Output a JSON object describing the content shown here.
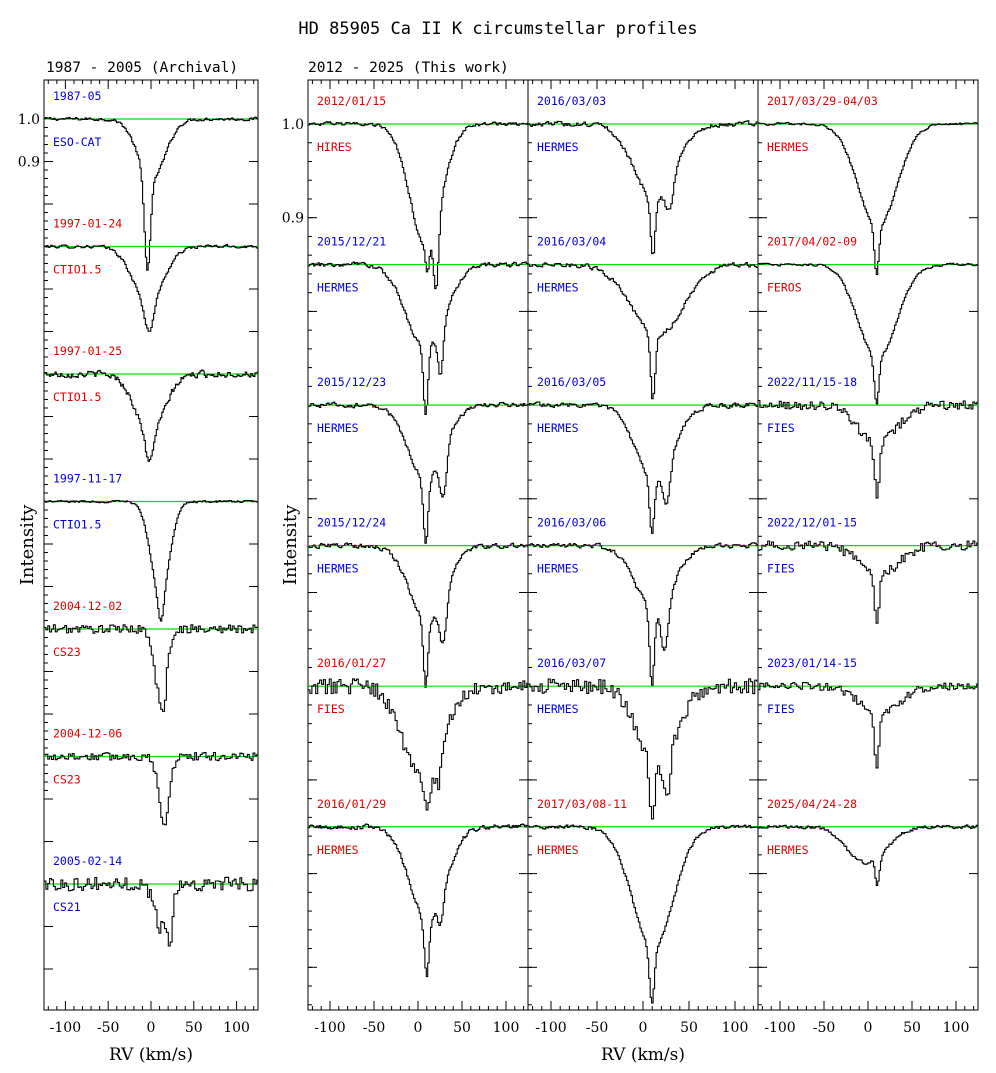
{
  "title": "HD 85905 Ca II K circumstellar profiles",
  "colors": {
    "continuum": "#00e000",
    "label_red": "#e00000",
    "label_blue": "#0000e0",
    "axis": "#000000",
    "spectrum": "#000000"
  },
  "chart_data": [
    {
      "type": "line",
      "panel": "archival",
      "header": "1987 - 2005 (Archival)",
      "xlabel": "RV (km/s)",
      "ylabel": "Intensity",
      "xlim": [
        -125,
        125
      ],
      "x_ticks": [
        -100,
        -50,
        0,
        50,
        100
      ],
      "y_tick_labels": [
        {
          "value": 1.0,
          "label": "1.0"
        },
        {
          "value": 0.9,
          "label": "0.9"
        }
      ],
      "offset_per_spectrum": 0.3,
      "series": [
        {
          "date": "1987-05",
          "instrument": "ESO-CAT",
          "color": "label_blue",
          "offset": 0.0,
          "noise": 0.006,
          "smooth": 1,
          "components": [
            {
              "v": 0,
              "depth": 0.14,
              "width": 16
            },
            {
              "v": -5,
              "depth": 0.22,
              "width": 3.5
            }
          ]
        },
        {
          "date": "1997-01-24",
          "instrument": "CTIO1.5",
          "color": "label_red",
          "offset": 0.3,
          "noise": 0.006,
          "smooth": 1,
          "components": [
            {
              "v": -4,
              "depth": 0.13,
              "width": 18
            },
            {
              "v": -3,
              "depth": 0.07,
              "width": 5
            }
          ]
        },
        {
          "date": "1997-01-25",
          "instrument": "CTIO1.5",
          "color": "label_red",
          "offset": 0.6,
          "noise": 0.012,
          "smooth": 1,
          "components": [
            {
              "v": -2,
              "depth": 0.14,
              "width": 17
            },
            {
              "v": -3,
              "depth": 0.07,
              "width": 4
            }
          ]
        },
        {
          "date": "1997-11-17",
          "instrument": "CTIO1.5",
          "color": "label_blue",
          "offset": 0.9,
          "noise": 0.004,
          "smooth": 1,
          "components": [
            {
              "v": 10,
              "depth": 0.22,
              "width": 11
            },
            {
              "v": 11,
              "depth": 0.06,
              "width": 3
            }
          ]
        },
        {
          "date": "2004-12-02",
          "instrument": "CS23",
          "color": "label_red",
          "offset": 1.2,
          "noise": 0.01,
          "smooth": 0,
          "components": [
            {
              "v": 10,
              "depth": 0.16,
              "width": 7
            },
            {
              "v": 14,
              "depth": 0.06,
              "width": 2.5
            }
          ]
        },
        {
          "date": "2004-12-06",
          "instrument": "CS23",
          "color": "label_red",
          "offset": 1.5,
          "noise": 0.01,
          "smooth": 0,
          "components": [
            {
              "v": 14,
              "depth": 0.16,
              "width": 6
            }
          ]
        },
        {
          "date": "2005-02-14",
          "instrument": "CS21",
          "color": "label_blue",
          "offset": 1.8,
          "noise": 0.016,
          "smooth": 0,
          "components": [
            {
              "v": 12,
              "depth": 0.08,
              "width": 9
            },
            {
              "v": 21,
              "depth": 0.09,
              "width": 3
            },
            {
              "v": 8,
              "depth": 0.05,
              "width": 2
            }
          ]
        }
      ]
    },
    {
      "type": "line",
      "panel": "this_work",
      "header": "2012 - 2025 (This work)",
      "xlabel": "RV (km/s)",
      "ylabel": "Intensity",
      "xlim": [
        -125,
        125
      ],
      "x_ticks": [
        -100,
        -50,
        0,
        50,
        100
      ],
      "y_tick_labels": [
        {
          "value": 1.0,
          "label": "1.0"
        },
        {
          "value": 0.9,
          "label": "0.9"
        }
      ],
      "offset_per_spectrum": 0.15,
      "columns": [
        [
          {
            "date": "2012/01/15",
            "instrument": "HIRES",
            "color": "label_red",
            "offset": 0.0,
            "noise": 0.003,
            "smooth": 1,
            "components": [
              {
                "v": 8,
                "depth": 0.13,
                "width": 18
              },
              {
                "v": 20,
                "depth": 0.07,
                "width": 3
              },
              {
                "v": 10,
                "depth": 0.03,
                "width": 2
              }
            ]
          },
          {
            "date": "2015/12/21",
            "instrument": "HERMES",
            "color": "label_blue",
            "offset": 0.15,
            "noise": 0.004,
            "smooth": 1,
            "components": [
              {
                "v": 8,
                "depth": 0.09,
                "width": 22
              },
              {
                "v": 8,
                "depth": 0.07,
                "width": 2.5
              },
              {
                "v": 25,
                "depth": 0.05,
                "width": 3
              }
            ]
          },
          {
            "date": "2015/12/23",
            "instrument": "HERMES",
            "color": "label_blue",
            "offset": 0.3,
            "noise": 0.004,
            "smooth": 1,
            "components": [
              {
                "v": 8,
                "depth": 0.08,
                "width": 20
              },
              {
                "v": 8,
                "depth": 0.07,
                "width": 2.5
              },
              {
                "v": 28,
                "depth": 0.05,
                "width": 4
              }
            ]
          },
          {
            "date": "2015/12/24",
            "instrument": "HERMES",
            "color": "label_blue",
            "offset": 0.45,
            "noise": 0.004,
            "smooth": 1,
            "components": [
              {
                "v": 10,
                "depth": 0.08,
                "width": 20
              },
              {
                "v": 8,
                "depth": 0.07,
                "width": 2.5
              },
              {
                "v": 28,
                "depth": 0.05,
                "width": 4
              }
            ]
          },
          {
            "date": "2016/01/27",
            "instrument": "FIES",
            "color": "label_red",
            "offset": 0.6,
            "noise": 0.008,
            "smooth": 0,
            "components": [
              {
                "v": 5,
                "depth": 0.1,
                "width": 22
              },
              {
                "v": 10,
                "depth": 0.04,
                "width": 2.5
              },
              {
                "v": 22,
                "depth": 0.03,
                "width": 3
              }
            ]
          },
          {
            "date": "2016/01/29",
            "instrument": "HERMES",
            "color": "label_red",
            "offset": 0.75,
            "noise": 0.004,
            "smooth": 1,
            "components": [
              {
                "v": 10,
                "depth": 0.1,
                "width": 20
              },
              {
                "v": 9,
                "depth": 0.06,
                "width": 2.5
              },
              {
                "v": 25,
                "depth": 0.03,
                "width": 3
              }
            ]
          }
        ],
        [
          {
            "date": "2016/03/03",
            "instrument": "HERMES",
            "color": "label_blue",
            "offset": 0.0,
            "noise": 0.004,
            "smooth": 1,
            "components": [
              {
                "v": 12,
                "depth": 0.08,
                "width": 22
              },
              {
                "v": 10,
                "depth": 0.06,
                "width": 2.5
              },
              {
                "v": 28,
                "depth": 0.03,
                "width": 4
              }
            ]
          },
          {
            "date": "2016/03/04",
            "instrument": "HERMES",
            "color": "label_blue",
            "offset": 0.15,
            "noise": 0.004,
            "smooth": 1,
            "components": [
              {
                "v": 15,
                "depth": 0.075,
                "width": 28
              },
              {
                "v": 10,
                "depth": 0.07,
                "width": 2.5
              }
            ]
          },
          {
            "date": "2016/03/05",
            "instrument": "HERMES",
            "color": "label_blue",
            "offset": 0.3,
            "noise": 0.004,
            "smooth": 1,
            "components": [
              {
                "v": 12,
                "depth": 0.08,
                "width": 20
              },
              {
                "v": 9,
                "depth": 0.06,
                "width": 2.5
              },
              {
                "v": 25,
                "depth": 0.04,
                "width": 4
              }
            ]
          },
          {
            "date": "2016/03/06",
            "instrument": "HERMES",
            "color": "label_blue",
            "offset": 0.45,
            "noise": 0.004,
            "smooth": 1,
            "components": [
              {
                "v": 12,
                "depth": 0.07,
                "width": 20
              },
              {
                "v": 9,
                "depth": 0.08,
                "width": 2.5
              },
              {
                "v": 23,
                "depth": 0.05,
                "width": 4
              }
            ]
          },
          {
            "date": "2016/03/07",
            "instrument": "HERMES",
            "color": "label_blue",
            "offset": 0.6,
            "noise": 0.008,
            "smooth": 0,
            "components": [
              {
                "v": 15,
                "depth": 0.09,
                "width": 20
              },
              {
                "v": 9,
                "depth": 0.06,
                "width": 2.5
              },
              {
                "v": 25,
                "depth": 0.04,
                "width": 3
              }
            ]
          },
          {
            "date": "2017/03/08-11",
            "instrument": "HERMES",
            "color": "label_red",
            "offset": 0.75,
            "noise": 0.003,
            "smooth": 1,
            "components": [
              {
                "v": 10,
                "depth": 0.13,
                "width": 22
              },
              {
                "v": 9,
                "depth": 0.06,
                "width": 2.5
              }
            ]
          }
        ],
        [
          {
            "date": "2017/03/29-04/03",
            "instrument": "HERMES",
            "color": "label_red",
            "offset": 0.0,
            "noise": 0.002,
            "smooth": 1,
            "components": [
              {
                "v": 10,
                "depth": 0.11,
                "width": 22
              },
              {
                "v": 9,
                "depth": 0.05,
                "width": 2.5
              }
            ]
          },
          {
            "date": "2017/04/02-09",
            "instrument": "FEROS",
            "color": "label_red",
            "offset": 0.15,
            "noise": 0.002,
            "smooth": 1,
            "components": [
              {
                "v": 10,
                "depth": 0.1,
                "width": 22
              },
              {
                "v": 9,
                "depth": 0.05,
                "width": 2.5
              }
            ]
          },
          {
            "date": "2022/11/15-18",
            "instrument": "FIES",
            "color": "label_blue",
            "offset": 0.3,
            "noise": 0.005,
            "smooth": 0,
            "components": [
              {
                "v": 10,
                "depth": 0.04,
                "width": 22
              },
              {
                "v": 9,
                "depth": 0.06,
                "width": 2.5
              }
            ]
          },
          {
            "date": "2022/12/01-15",
            "instrument": "FIES",
            "color": "label_blue",
            "offset": 0.45,
            "noise": 0.005,
            "smooth": 0,
            "components": [
              {
                "v": 12,
                "depth": 0.03,
                "width": 22
              },
              {
                "v": 9,
                "depth": 0.05,
                "width": 2.5
              }
            ]
          },
          {
            "date": "2023/01/14-15",
            "instrument": "FIES",
            "color": "label_blue",
            "offset": 0.6,
            "noise": 0.004,
            "smooth": 0,
            "components": [
              {
                "v": 12,
                "depth": 0.03,
                "width": 22
              },
              {
                "v": 9,
                "depth": 0.06,
                "width": 2.5
              }
            ]
          },
          {
            "date": "2025/04/24-28",
            "instrument": "HERMES",
            "color": "label_red",
            "offset": 0.75,
            "noise": 0.003,
            "smooth": 1,
            "components": [
              {
                "v": -12,
                "depth": 0.025,
                "width": 18
              },
              {
                "v": 10,
                "depth": 0.02,
                "width": 20
              },
              {
                "v": 10,
                "depth": 0.03,
                "width": 2.5
              }
            ]
          }
        ]
      ]
    }
  ]
}
